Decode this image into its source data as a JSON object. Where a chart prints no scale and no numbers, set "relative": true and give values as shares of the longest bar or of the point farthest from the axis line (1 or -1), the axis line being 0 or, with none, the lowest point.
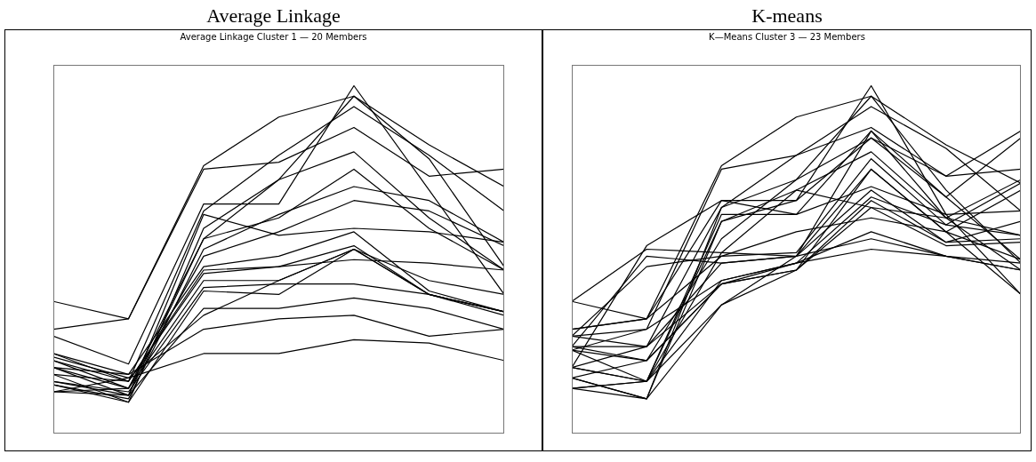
{
  "chart_data": [
    {
      "type": "line",
      "title": "Average Linkage",
      "subtitle": "Average Linkage Cluster 1 — 20 Members",
      "relative": true,
      "tick_labels": false,
      "categories": [
        null,
        null,
        null,
        null,
        null,
        null,
        null
      ],
      "series": [
        {
          "color": "#000000",
          "values": [
            0.38,
            0.33,
            0.77,
            0.91,
            0.97,
            0.83,
            0.71
          ]
        },
        {
          "color": "#000000",
          "values": [
            0.3,
            0.33,
            0.76,
            0.78,
            0.88,
            0.74,
            0.76
          ]
        },
        {
          "color": "#000000",
          "values": [
            0.28,
            0.2,
            0.66,
            0.66,
            1.0,
            0.7,
            0.4
          ]
        },
        {
          "color": "#000000",
          "values": [
            0.23,
            0.15,
            0.64,
            0.8,
            0.94,
            0.8,
            0.64
          ]
        },
        {
          "color": "#000000",
          "values": [
            0.21,
            0.13,
            0.56,
            0.73,
            0.97,
            0.79,
            0.48
          ]
        },
        {
          "color": "#000000",
          "values": [
            0.19,
            0.11,
            0.63,
            0.57,
            0.59,
            0.58,
            0.55
          ]
        },
        {
          "color": "#000000",
          "values": [
            0.17,
            0.09,
            0.59,
            0.73,
            0.81,
            0.62,
            0.47
          ]
        },
        {
          "color": "#000000",
          "values": [
            0.15,
            0.11,
            0.56,
            0.62,
            0.76,
            0.59,
            0.47
          ]
        },
        {
          "color": "#000000",
          "values": [
            0.14,
            0.1,
            0.53,
            0.63,
            0.71,
            0.67,
            0.55
          ]
        },
        {
          "color": "#000000",
          "values": [
            0.12,
            0.13,
            0.51,
            0.58,
            0.67,
            0.64,
            0.54
          ]
        },
        {
          "color": "#000000",
          "values": [
            0.23,
            0.17,
            0.48,
            0.51,
            0.58,
            0.41,
            0.35
          ]
        },
        {
          "color": "#000000",
          "values": [
            0.21,
            0.15,
            0.47,
            0.48,
            0.54,
            0.4,
            0.35
          ]
        },
        {
          "color": "#000000",
          "values": [
            0.19,
            0.13,
            0.44,
            0.44,
            0.53,
            0.4,
            0.34
          ]
        },
        {
          "color": "#000000",
          "values": [
            0.17,
            0.15,
            0.46,
            0.48,
            0.5,
            0.49,
            0.47
          ]
        },
        {
          "color": "#000000",
          "values": [
            0.15,
            0.12,
            0.42,
            0.43,
            0.43,
            0.4,
            0.35
          ]
        },
        {
          "color": "#000000",
          "values": [
            0.14,
            0.09,
            0.41,
            0.4,
            0.53,
            0.4,
            0.35
          ]
        },
        {
          "color": "#000000",
          "values": [
            0.12,
            0.11,
            0.36,
            0.36,
            0.39,
            0.36,
            0.3
          ]
        },
        {
          "color": "#000000",
          "values": [
            0.19,
            0.17,
            0.3,
            0.33,
            0.34,
            0.28,
            0.3
          ]
        },
        {
          "color": "#000000",
          "values": [
            0.12,
            0.16,
            0.23,
            0.23,
            0.27,
            0.26,
            0.21
          ]
        },
        {
          "color": "#000000",
          "values": [
            0.22,
            0.16,
            0.34,
            0.44,
            0.53,
            0.44,
            0.4
          ]
        }
      ]
    },
    {
      "type": "line",
      "title": "K-means",
      "subtitle": "K—Means Cluster 3 — 23 Members",
      "relative": true,
      "tick_labels": false,
      "categories": [
        null,
        null,
        null,
        null,
        null,
        null,
        null
      ],
      "series": [
        {
          "color": "#000000",
          "values": [
            0.38,
            0.33,
            0.77,
            0.91,
            0.97,
            0.83,
            0.72
          ]
        },
        {
          "color": "#000000",
          "values": [
            0.28,
            0.3,
            0.76,
            0.8,
            0.88,
            0.74,
            0.87
          ]
        },
        {
          "color": "#000000",
          "values": [
            0.3,
            0.33,
            0.67,
            0.67,
            1.0,
            0.63,
            0.4
          ]
        },
        {
          "color": "#000000",
          "values": [
            0.25,
            0.25,
            0.65,
            0.8,
            0.94,
            0.82,
            0.64
          ]
        },
        {
          "color": "#000000",
          "values": [
            0.24,
            0.21,
            0.56,
            0.73,
            0.97,
            0.7,
            0.49
          ]
        },
        {
          "color": "#000000",
          "values": [
            0.19,
            0.15,
            0.63,
            0.63,
            0.87,
            0.68,
            0.85
          ]
        },
        {
          "color": "#000000",
          "values": [
            0.16,
            0.1,
            0.61,
            0.67,
            0.85,
            0.74,
            0.76
          ]
        },
        {
          "color": "#000000",
          "values": [
            0.13,
            0.15,
            0.52,
            0.7,
            0.81,
            0.62,
            0.73
          ]
        },
        {
          "color": "#000000",
          "values": [
            0.28,
            0.48,
            0.51,
            0.52,
            0.79,
            0.6,
            0.72
          ]
        },
        {
          "color": "#000000",
          "values": [
            0.25,
            0.51,
            0.49,
            0.51,
            0.76,
            0.58,
            0.7
          ]
        },
        {
          "color": "#000000",
          "values": [
            0.19,
            0.54,
            0.67,
            0.63,
            0.71,
            0.63,
            0.64
          ]
        },
        {
          "color": "#000000",
          "values": [
            0.38,
            0.53,
            0.52,
            0.51,
            0.7,
            0.55,
            0.61
          ]
        },
        {
          "color": "#000000",
          "values": [
            0.24,
            0.3,
            0.44,
            0.49,
            0.68,
            0.6,
            0.57
          ]
        },
        {
          "color": "#000000",
          "values": [
            0.16,
            0.21,
            0.43,
            0.47,
            0.67,
            0.55,
            0.56
          ]
        },
        {
          "color": "#000000",
          "values": [
            0.13,
            0.1,
            0.37,
            0.47,
            0.65,
            0.54,
            0.55
          ]
        },
        {
          "color": "#000000",
          "values": [
            0.3,
            0.33,
            0.51,
            0.58,
            0.62,
            0.58,
            0.5
          ]
        },
        {
          "color": "#000000",
          "values": [
            0.28,
            0.25,
            0.49,
            0.51,
            0.56,
            0.51,
            0.49
          ]
        },
        {
          "color": "#000000",
          "values": [
            0.19,
            0.15,
            0.44,
            0.49,
            0.53,
            0.51,
            0.47
          ]
        },
        {
          "color": "#000000",
          "values": [
            0.25,
            0.21,
            0.43,
            0.47,
            0.76,
            0.58,
            0.4
          ]
        },
        {
          "color": "#000000",
          "values": [
            0.24,
            0.15,
            0.37,
            0.51,
            0.87,
            0.62,
            0.47
          ]
        },
        {
          "color": "#000000",
          "values": [
            0.16,
            0.1,
            0.65,
            0.73,
            0.85,
            0.68,
            0.5
          ]
        },
        {
          "color": "#000000",
          "values": [
            0.13,
            0.15,
            0.61,
            0.7,
            0.65,
            0.62,
            0.57
          ]
        },
        {
          "color": "#000000",
          "values": [
            0.19,
            0.25,
            0.43,
            0.49,
            0.58,
            0.51,
            0.47
          ]
        }
      ]
    }
  ]
}
